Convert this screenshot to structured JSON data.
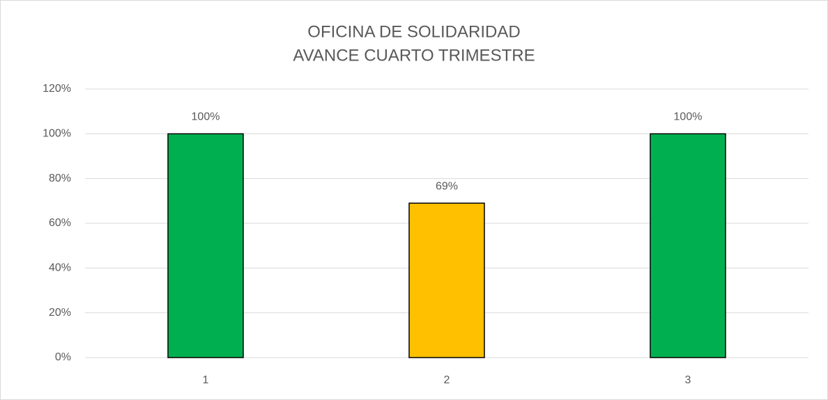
{
  "chart_data": {
    "type": "bar",
    "title": [
      "OFICINA DE SOLIDARIDAD",
      "AVANCE CUARTO TRIMESTRE"
    ],
    "categories": [
      "1",
      "2",
      "3"
    ],
    "values": [
      100,
      69,
      100
    ],
    "value_labels": [
      "100%",
      "69%",
      "100%"
    ],
    "colors": [
      "#00b050",
      "#ffc000",
      "#00b050"
    ],
    "ylim": [
      0,
      120
    ],
    "yticks": [
      {
        "value": 0,
        "label": "0%"
      },
      {
        "value": 20,
        "label": "20%"
      },
      {
        "value": 40,
        "label": "40%"
      },
      {
        "value": 60,
        "label": "60%"
      },
      {
        "value": 80,
        "label": "80%"
      },
      {
        "value": 100,
        "label": "100%"
      },
      {
        "value": 120,
        "label": "120%"
      }
    ],
    "grid": true
  }
}
